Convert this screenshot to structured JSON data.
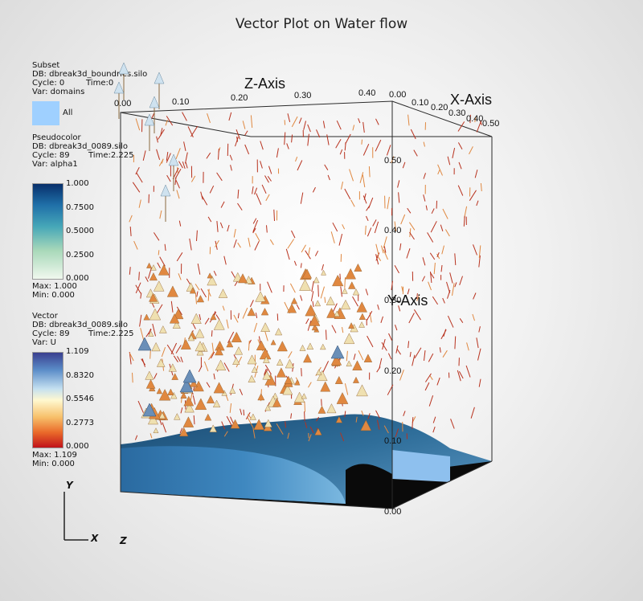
{
  "title": "Vector Plot on Water flow",
  "legend": {
    "subset": {
      "type": "Subset",
      "db": "DB: dbreak3d_boundries.silo",
      "cycle": "Cycle: 0",
      "time": "Time:0",
      "var": "Var: domains",
      "item": "All",
      "item_color": "#9fd0ff"
    },
    "pseudocolor": {
      "type": "Pseudocolor",
      "db": "DB: dbreak3d_0089.silo",
      "cycle": "Cycle: 89",
      "time": "Time:2.225",
      "var": "Var: alpha1",
      "ticks": [
        "1.000",
        "0.7500",
        "0.5000",
        "0.2500",
        "0.000"
      ],
      "max": "Max:  1.000",
      "min": "Min:  0.000"
    },
    "vector": {
      "type": "Vector",
      "db": "DB: dbreak3d_0089.silo",
      "cycle": "Cycle: 89",
      "time": "Time:2.225",
      "var": "Var: U",
      "ticks": [
        "1.109",
        "0.8320",
        "0.5546",
        "0.2773",
        "0.000"
      ],
      "max": "Max:  1.109",
      "min": "Min:  0.000"
    }
  },
  "axes": {
    "z_title": "Z-Axis",
    "x_title": "X-Axis",
    "y_title": "Y-Axis",
    "z_ticks": [
      "0.00",
      "0.10",
      "0.20",
      "0.30",
      "0.40"
    ],
    "x_ticks": [
      "0.00",
      "0.10",
      "0.20",
      "0.30",
      "0.40",
      "0.50"
    ],
    "y_ticks": [
      "0.50",
      "0.40",
      "0.30",
      "0.20",
      "0.10",
      "0.00"
    ]
  },
  "triad": {
    "y": "Y",
    "x": "X",
    "z": "Z"
  },
  "colors": {
    "arrow_red": "#b8321e",
    "arrow_orange": "#e08840",
    "arrow_cream": "#efe0b0",
    "water_dark": "#1c4f78",
    "water_light": "#5aa0d0",
    "box_line": "#2a2a2a"
  }
}
